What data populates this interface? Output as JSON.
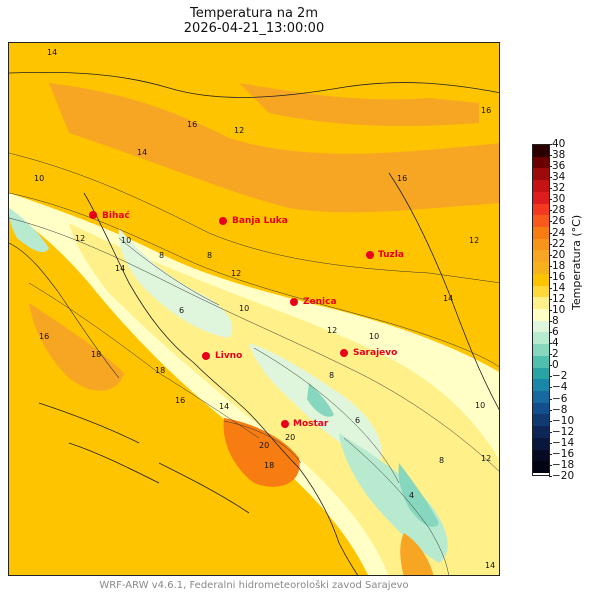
{
  "title": "Temperatura na 2m",
  "subtitle": "2026-04-21_13:00:00",
  "footer": "WRF-ARW v4.6.1, Federalni hidrometeorološki zavod Sarajevo",
  "colorbar": {
    "label": "Temperatura (°C)",
    "ticks": [
      "40",
      "38",
      "36",
      "34",
      "32",
      "30",
      "28",
      "26",
      "24",
      "22",
      "20",
      "18",
      "16",
      "14",
      "12",
      "10",
      "8",
      "6",
      "4",
      "2",
      "0",
      "−2",
      "−4",
      "−6",
      "−8",
      "−10",
      "−12",
      "−14",
      "−16",
      "−18",
      "−20"
    ],
    "colors": [
      "#2b0000",
      "#6b0000",
      "#9c0a0a",
      "#c41313",
      "#e01d1d",
      "#f23a20",
      "#f75a1a",
      "#f77d12",
      "#f7951a",
      "#f7a623",
      "#f6b21c",
      "#fdc300",
      "#ffd93a",
      "#fff08a",
      "#ffffc6",
      "#dff5dc",
      "#b8ead0",
      "#86d7bd",
      "#4fc0ad",
      "#2aa3a6",
      "#1a86a8",
      "#166aa0",
      "#144f8d",
      "#123a72",
      "#0d2656",
      "#0a173d",
      "#060b24",
      "#020412"
    ]
  },
  "map": {
    "base_color": "#ffc400",
    "cities": [
      {
        "name": "Bihać"
      },
      {
        "name": "Banja Luka"
      },
      {
        "name": "Tuzla"
      },
      {
        "name": "Zenica"
      },
      {
        "name": "Sarajevo"
      },
      {
        "name": "Livno"
      },
      {
        "name": "Mostar"
      }
    ],
    "isolines": [
      "14",
      "16",
      "12",
      "10",
      "14",
      "16",
      "12",
      "10",
      "8",
      "6",
      "12",
      "14",
      "10",
      "8",
      "16",
      "18",
      "18",
      "20",
      "20",
      "16",
      "14",
      "12",
      "10",
      "8",
      "6",
      "12",
      "14",
      "16",
      "18",
      "4",
      "8",
      "10",
      "12",
      "14"
    ]
  }
}
